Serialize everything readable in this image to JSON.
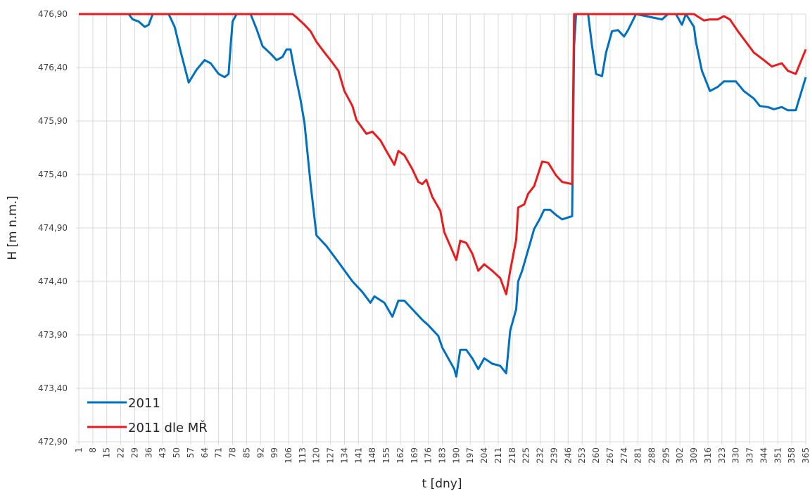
{
  "chart_data": {
    "type": "line",
    "xlabel": "t [dny]",
    "ylabel": "H [m n.m.]",
    "xlim": [
      1,
      365
    ],
    "xticks": [
      1,
      8,
      15,
      22,
      29,
      36,
      43,
      50,
      57,
      64,
      71,
      78,
      85,
      92,
      99,
      106,
      113,
      120,
      127,
      134,
      141,
      148,
      155,
      162,
      169,
      176,
      183,
      190,
      197,
      204,
      211,
      218,
      225,
      232,
      239,
      246,
      253,
      260,
      267,
      274,
      281,
      288,
      295,
      302,
      309,
      316,
      323,
      330,
      337,
      344,
      351,
      358,
      365
    ],
    "ylim": [
      472.9,
      476.9
    ],
    "yticks": [
      {
        "value": 472.9,
        "label": "472,90"
      },
      {
        "value": 473.4,
        "label": "473,40"
      },
      {
        "value": 473.9,
        "label": "473,90"
      },
      {
        "value": 474.4,
        "label": "474,40"
      },
      {
        "value": 474.9,
        "label": "474,90"
      },
      {
        "value": 475.4,
        "label": "475,40"
      },
      {
        "value": 475.9,
        "label": "475,90"
      },
      {
        "value": 476.4,
        "label": "476,40"
      },
      {
        "value": 476.9,
        "label": "476,90"
      }
    ],
    "grid": true,
    "legend": "lower left",
    "series": [
      {
        "name": "2011",
        "color": "#0070c0",
        "x": [
          1,
          26,
          28,
          31,
          34,
          36,
          38,
          46,
          49,
          52,
          56,
          60,
          64,
          67,
          71,
          74,
          76,
          77,
          78,
          80,
          87,
          90,
          93,
          97,
          100,
          103,
          105,
          107,
          109,
          112,
          114,
          117,
          120,
          125,
          131,
          138,
          143,
          147,
          149,
          154,
          158,
          161,
          164,
          169,
          173,
          176,
          181,
          183,
          189,
          190,
          192,
          195,
          198,
          201,
          204,
          208,
          212,
          215,
          217,
          220,
          221,
          223,
          225,
          227,
          229,
          232,
          234,
          237,
          240,
          243,
          248,
          249,
          250,
          256,
          258,
          260,
          263,
          265,
          268,
          271,
          274,
          276,
          280,
          293,
          296,
          300,
          303,
          305,
          309,
          310,
          313,
          317,
          321,
          324,
          330,
          334,
          339,
          342,
          346,
          349,
          353,
          356,
          360,
          365
        ],
        "values": [
          476.9,
          476.9,
          476.85,
          476.83,
          476.78,
          476.8,
          476.9,
          476.9,
          476.78,
          476.55,
          476.26,
          476.38,
          476.47,
          476.44,
          476.34,
          476.31,
          476.34,
          476.6,
          476.83,
          476.9,
          476.9,
          476.76,
          476.6,
          476.53,
          476.47,
          476.5,
          476.57,
          476.57,
          476.37,
          476.1,
          475.88,
          475.32,
          474.83,
          474.73,
          474.58,
          474.4,
          474.3,
          474.2,
          474.26,
          474.2,
          474.07,
          474.22,
          474.22,
          474.12,
          474.04,
          473.99,
          473.89,
          473.78,
          473.58,
          473.51,
          473.76,
          473.76,
          473.68,
          473.58,
          473.68,
          473.63,
          473.61,
          473.54,
          473.94,
          474.14,
          474.4,
          474.5,
          474.63,
          474.76,
          474.89,
          474.99,
          475.07,
          475.07,
          475.02,
          474.98,
          475.01,
          476.6,
          476.9,
          476.9,
          476.6,
          476.34,
          476.32,
          476.54,
          476.74,
          476.75,
          476.69,
          476.75,
          476.9,
          476.85,
          476.9,
          476.9,
          476.8,
          476.9,
          476.78,
          476.64,
          476.37,
          476.18,
          476.22,
          476.27,
          476.27,
          476.18,
          476.11,
          476.04,
          476.03,
          476.01,
          476.03,
          476.0,
          476.0,
          476.31
        ]
      },
      {
        "name": "2011 dle MŘ",
        "color": "#e81c1c",
        "x": [
          1,
          108,
          110,
          114,
          117,
          120,
          124,
          127,
          131,
          134,
          138,
          140,
          145,
          148,
          152,
          155,
          159,
          161,
          164,
          168,
          171,
          173,
          175,
          178,
          182,
          184,
          187,
          190,
          192,
          195,
          198,
          201,
          204,
          208,
          212,
          215,
          217,
          220,
          221,
          224,
          226,
          229,
          233,
          236,
          240,
          243,
          248,
          249,
          309,
          314,
          317,
          321,
          324,
          327,
          331,
          335,
          339,
          344,
          348,
          353,
          356,
          360,
          365
        ],
        "values": [
          476.9,
          476.9,
          476.87,
          476.8,
          476.74,
          476.64,
          476.54,
          476.47,
          476.37,
          476.18,
          476.04,
          475.91,
          475.78,
          475.8,
          475.72,
          475.62,
          475.49,
          475.62,
          475.58,
          475.45,
          475.33,
          475.31,
          475.35,
          475.19,
          475.06,
          474.86,
          474.73,
          474.6,
          474.78,
          474.76,
          474.66,
          474.5,
          474.56,
          474.5,
          474.43,
          474.28,
          474.5,
          474.79,
          475.09,
          475.12,
          475.22,
          475.29,
          475.52,
          475.51,
          475.39,
          475.33,
          475.31,
          476.9,
          476.9,
          476.84,
          476.85,
          476.85,
          476.88,
          476.85,
          476.74,
          476.64,
          476.54,
          476.47,
          476.41,
          476.44,
          476.37,
          476.34,
          476.57
        ]
      }
    ]
  }
}
